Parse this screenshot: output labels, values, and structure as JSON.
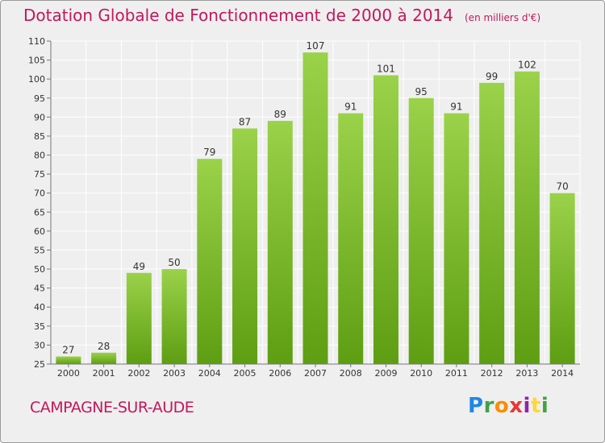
{
  "title": "Dotation Globale de Fonctionnement de 2000 à 2014",
  "subtitle": "(en milliers d'€)",
  "town": "CAMPAGNE-SUR-AUDE",
  "logo": {
    "letters": [
      "P",
      "r",
      "o",
      "x",
      "i",
      "t",
      "i"
    ]
  },
  "colors": {
    "title": "#c2185b",
    "bar_top": "#9ad24a",
    "bar_bottom": "#5e9e12",
    "background": "#efefef",
    "grid": "#ffffff"
  },
  "chart_data": {
    "type": "bar",
    "categories": [
      "2000",
      "2001",
      "2002",
      "2003",
      "2004",
      "2005",
      "2006",
      "2007",
      "2008",
      "2009",
      "2010",
      "2011",
      "2012",
      "2013",
      "2014"
    ],
    "values": [
      27,
      28,
      49,
      50,
      79,
      87,
      89,
      107,
      91,
      101,
      95,
      91,
      99,
      102,
      70
    ],
    "ylim": [
      25,
      110
    ],
    "yticks": [
      25,
      30,
      35,
      40,
      45,
      50,
      55,
      60,
      65,
      70,
      75,
      80,
      85,
      90,
      95,
      100,
      105,
      110
    ],
    "grid": true,
    "data_labels": true
  }
}
